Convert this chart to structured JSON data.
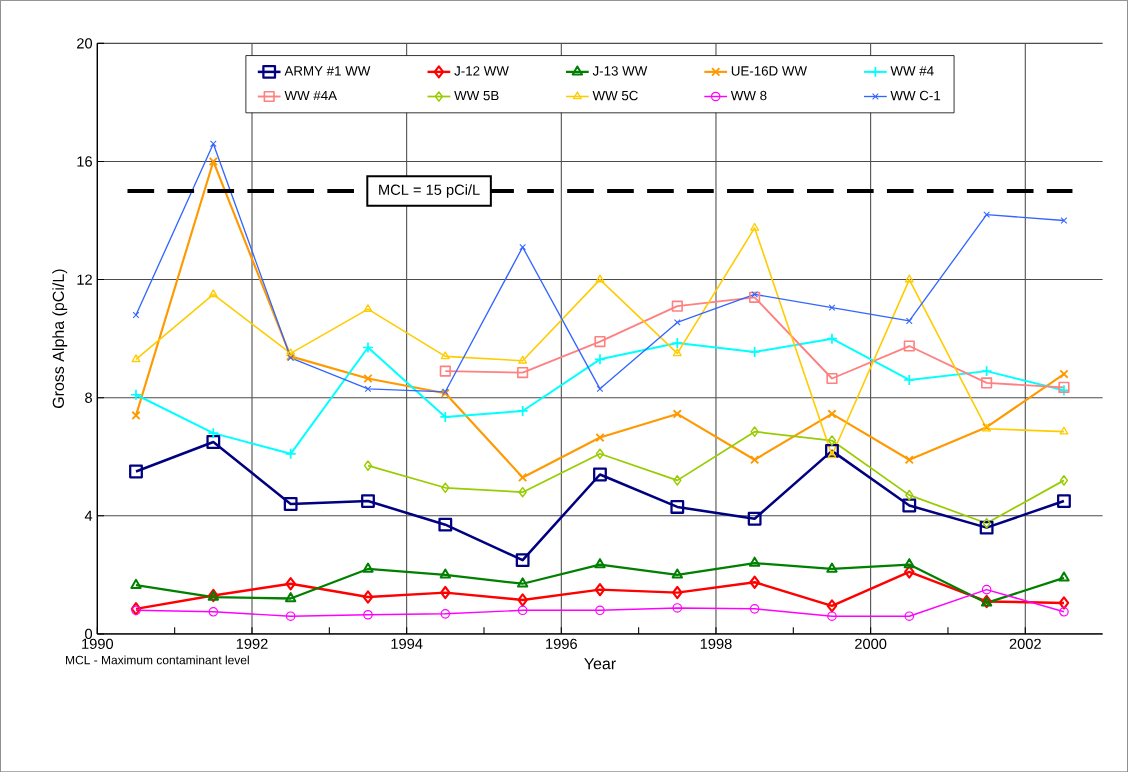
{
  "chart_data": {
    "type": "line",
    "xlabel": "Year",
    "ylabel": "Gross Alpha (pCi/L)",
    "x": [
      1990.5,
      1991.5,
      1992.5,
      1993.5,
      1994.5,
      1995.5,
      1996.5,
      1997.5,
      1998.5,
      1999.5,
      2000.5,
      2001.5,
      2002.5
    ],
    "xlim": [
      1990,
      2003
    ],
    "ylim": [
      0,
      20
    ],
    "xticks": [
      1990,
      {
        "value": 1991,
        "label": null
      },
      1992,
      {
        "value": 1993,
        "label": null
      },
      1994,
      {
        "value": 1995,
        "label": null
      },
      1996,
      {
        "value": 1997,
        "label": null
      },
      1998,
      {
        "value": 1999,
        "label": null
      },
      2000,
      {
        "value": 2001,
        "label": null
      },
      2002
    ],
    "yticks": [
      0,
      4,
      8,
      12,
      16,
      20
    ],
    "grid": true,
    "legend": "top",
    "line_style": "solid",
    "ref_lines": [
      {
        "axis": "y",
        "value": 15,
        "label": "MCL = 15 pCi/L",
        "color": "#000000",
        "line_style": "dashed"
      }
    ],
    "annotations": [
      "MCL - Maximum contaminant level"
    ],
    "series": [
      {
        "name": "ARMY #1 WW",
        "color": "#000080",
        "marker": "square",
        "values": [
          5.5,
          6.5,
          4.4,
          4.5,
          3.7,
          2.5,
          5.4,
          4.3,
          3.9,
          6.2,
          4.35,
          3.6,
          4.5
        ]
      },
      {
        "name": "J-12 WW",
        "color": "#ff0000",
        "marker": "diamond",
        "values": [
          0.85,
          1.3,
          1.7,
          1.25,
          1.4,
          1.15,
          1.5,
          1.4,
          1.75,
          0.95,
          2.1,
          1.1,
          1.05
        ]
      },
      {
        "name": "J-13 WW",
        "color": "#008000",
        "marker": "triangle",
        "values": [
          1.65,
          1.25,
          1.2,
          2.2,
          2.0,
          1.7,
          2.35,
          2.0,
          2.4,
          2.2,
          2.35,
          1.05,
          1.9
        ]
      },
      {
        "name": "UE-16D WW",
        "color": "#ff9900",
        "marker": "cross",
        "values": [
          7.4,
          16.0,
          9.4,
          8.65,
          8.15,
          5.3,
          6.65,
          7.45,
          5.9,
          7.45,
          5.9,
          7.0,
          8.8
        ]
      },
      {
        "name": "WW #4",
        "color": "#00ffff",
        "marker": "plus",
        "values": [
          8.1,
          6.8,
          6.1,
          9.7,
          7.35,
          7.55,
          9.3,
          9.85,
          9.55,
          10.0,
          8.6,
          8.9,
          8.25
        ]
      },
      {
        "name": "WW #4A",
        "color": "#ff8080",
        "marker": "square",
        "values": [
          null,
          null,
          null,
          null,
          8.9,
          8.85,
          9.9,
          11.1,
          11.4,
          8.65,
          9.75,
          8.5,
          8.35
        ]
      },
      {
        "name": "WW 5B",
        "color": "#99cc00",
        "marker": "diamond",
        "values": [
          null,
          null,
          null,
          5.7,
          4.95,
          4.8,
          6.1,
          5.2,
          6.85,
          6.55,
          4.7,
          3.75,
          5.2
        ]
      },
      {
        "name": "WW 5C",
        "color": "#ffcc00",
        "marker": "triangle",
        "values": [
          9.3,
          11.5,
          9.5,
          11.0,
          9.4,
          9.25,
          12.0,
          9.5,
          13.75,
          6.05,
          12.0,
          6.95,
          6.85
        ]
      },
      {
        "name": "WW 8",
        "color": "#ff00ff",
        "marker": "circle",
        "values": [
          0.8,
          0.75,
          0.6,
          0.65,
          0.68,
          0.8,
          0.8,
          0.88,
          0.85,
          0.6,
          0.6,
          1.5,
          0.75
        ]
      },
      {
        "name": "WW C-1",
        "color": "#3366ff",
        "marker": "cross",
        "values": [
          10.8,
          16.6,
          9.35,
          8.3,
          8.2,
          13.1,
          8.3,
          10.55,
          11.5,
          11.05,
          10.6,
          14.2,
          14.0
        ]
      }
    ]
  }
}
